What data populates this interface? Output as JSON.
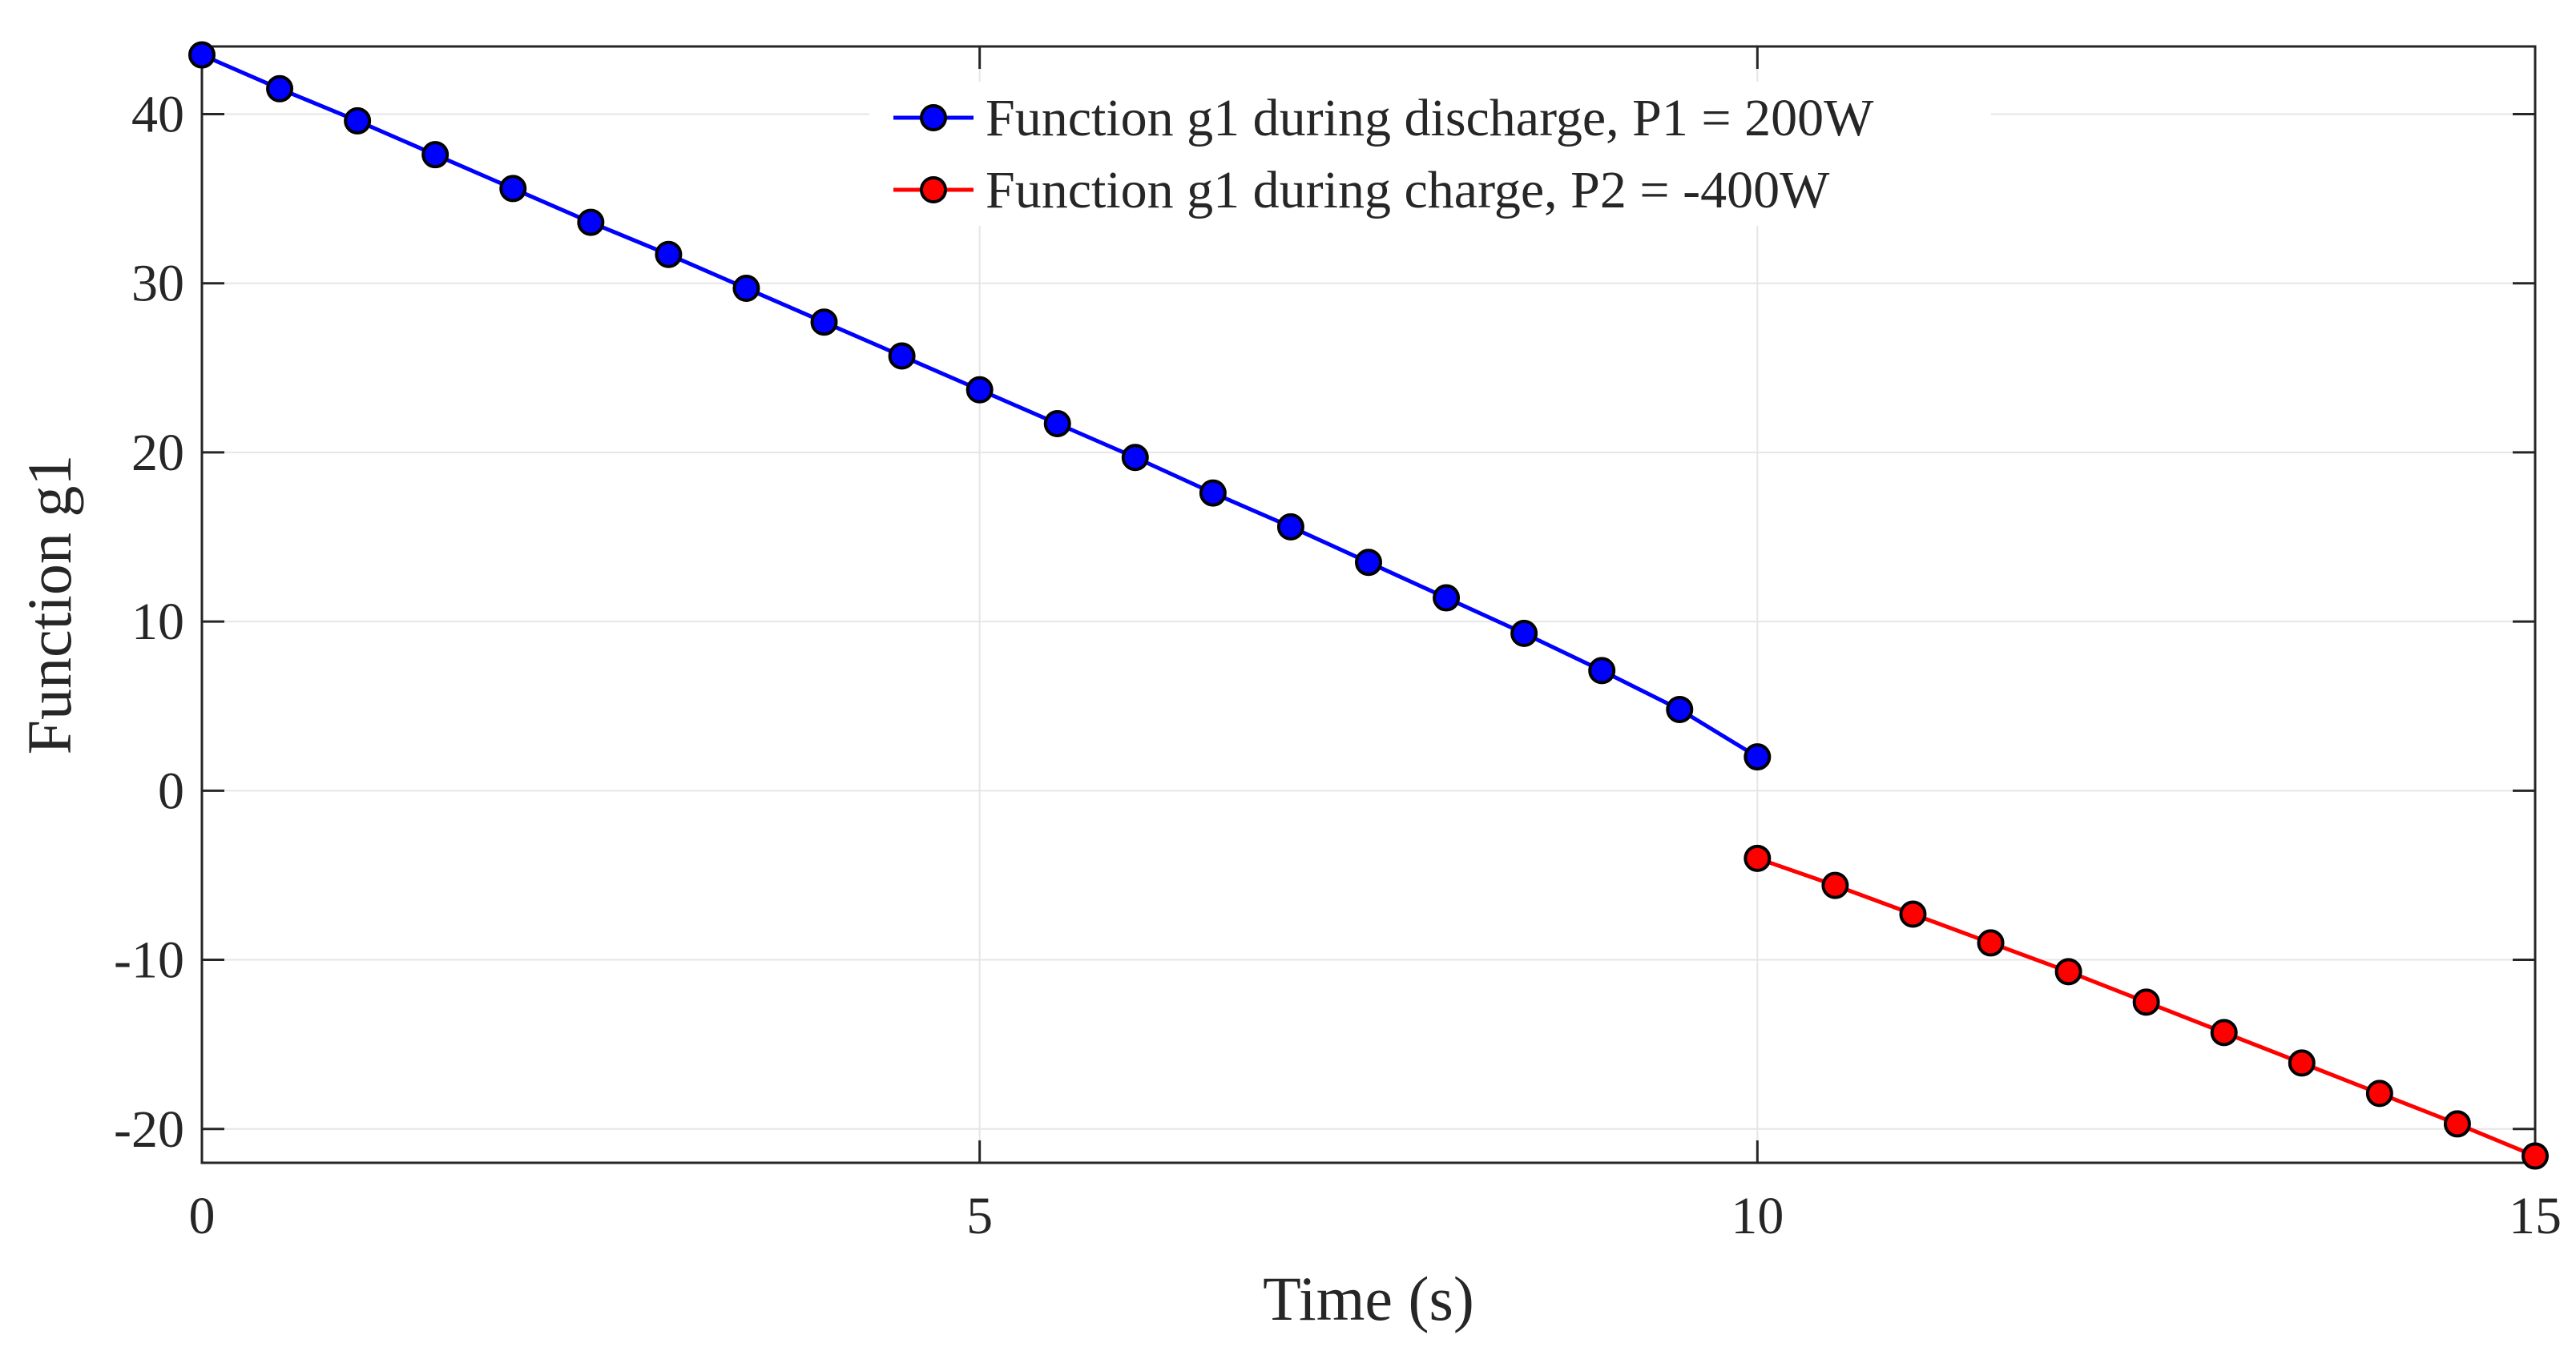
{
  "chart_data": {
    "type": "line",
    "xlabel": "Time (s)",
    "ylabel": "Function g1",
    "xlim": [
      0,
      15
    ],
    "ylim": [
      -22,
      44
    ],
    "xticks": [
      0,
      5,
      10,
      15
    ],
    "yticks": [
      -20,
      -10,
      0,
      10,
      20,
      30,
      40
    ],
    "grid": true,
    "legend_position": "top-center",
    "series": [
      {
        "name": "Function g1 during discharge, P1 = 200W",
        "color": "#0000ff",
        "x": [
          0,
          0.5,
          1,
          1.5,
          2,
          2.5,
          3,
          3.5,
          4,
          4.5,
          5,
          5.5,
          6,
          6.5,
          7,
          7.5,
          8,
          8.5,
          9,
          9.5,
          10
        ],
        "y": [
          43.5,
          41.5,
          39.6,
          37.6,
          35.6,
          33.6,
          31.7,
          29.7,
          27.7,
          25.7,
          23.7,
          21.7,
          19.7,
          17.6,
          15.6,
          13.5,
          11.4,
          9.3,
          7.1,
          4.8,
          2.0
        ]
      },
      {
        "name": "Function g1 during charge, P2 = -400W",
        "color": "#ff0000",
        "x": [
          10,
          10.5,
          11,
          11.5,
          12,
          12.5,
          13,
          13.5,
          14,
          14.5,
          15
        ],
        "y": [
          -4.0,
          -5.6,
          -7.3,
          -9.0,
          -10.7,
          -12.5,
          -14.3,
          -16.1,
          -17.9,
          -19.7,
          -21.6
        ]
      }
    ]
  }
}
